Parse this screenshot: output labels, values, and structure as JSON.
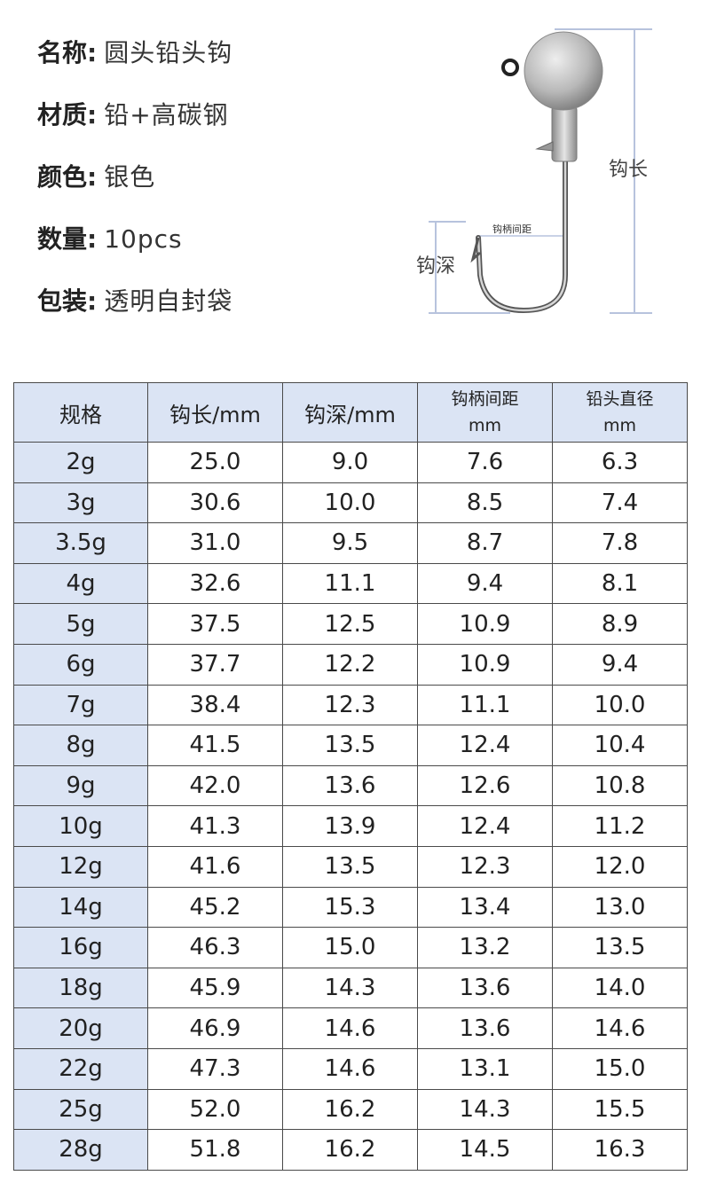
{
  "specs": [
    {
      "key": "名称",
      "value": "圆头铅头钩"
    },
    {
      "key": "材质",
      "value": "铅+高碳钢"
    },
    {
      "key": "颜色",
      "value": "银色"
    },
    {
      "key": "数量",
      "value": "10pcs"
    },
    {
      "key": "包装",
      "value": "透明自封袋"
    }
  ],
  "diagram": {
    "hook_length_label": "钩长",
    "hook_depth_label": "钩深",
    "shank_gap_label": "钩柄间距"
  },
  "table": {
    "headers": [
      {
        "line1": "规格",
        "line2": ""
      },
      {
        "line1": "钩长/mm",
        "line2": ""
      },
      {
        "line1": "钩深/mm",
        "line2": ""
      },
      {
        "line1": "钩柄间距",
        "line2": "mm"
      },
      {
        "line1": "铅头直径",
        "line2": "mm"
      }
    ],
    "rows": [
      [
        "2g",
        "25.0",
        "9.0",
        "7.6",
        "6.3"
      ],
      [
        "3g",
        "30.6",
        "10.0",
        "8.5",
        "7.4"
      ],
      [
        "3.5g",
        "31.0",
        "9.5",
        "8.7",
        "7.8"
      ],
      [
        "4g",
        "32.6",
        "11.1",
        "9.4",
        "8.1"
      ],
      [
        "5g",
        "37.5",
        "12.5",
        "10.9",
        "8.9"
      ],
      [
        "6g",
        "37.7",
        "12.2",
        "10.9",
        "9.4"
      ],
      [
        "7g",
        "38.4",
        "12.3",
        "11.1",
        "10.0"
      ],
      [
        "8g",
        "41.5",
        "13.5",
        "12.4",
        "10.4"
      ],
      [
        "9g",
        "42.0",
        "13.6",
        "12.6",
        "10.8"
      ],
      [
        "10g",
        "41.3",
        "13.9",
        "12.4",
        "11.2"
      ],
      [
        "12g",
        "41.6",
        "13.5",
        "12.3",
        "12.0"
      ],
      [
        "14g",
        "45.2",
        "15.3",
        "13.4",
        "13.0"
      ],
      [
        "16g",
        "46.3",
        "15.0",
        "13.2",
        "13.5"
      ],
      [
        "18g",
        "45.9",
        "14.3",
        "13.6",
        "14.0"
      ],
      [
        "20g",
        "46.9",
        "14.6",
        "13.6",
        "14.6"
      ],
      [
        "22g",
        "47.3",
        "14.6",
        "13.1",
        "15.0"
      ],
      [
        "25g",
        "52.0",
        "16.2",
        "14.3",
        "15.5"
      ],
      [
        "28g",
        "51.8",
        "16.2",
        "14.5",
        "16.3"
      ]
    ]
  }
}
